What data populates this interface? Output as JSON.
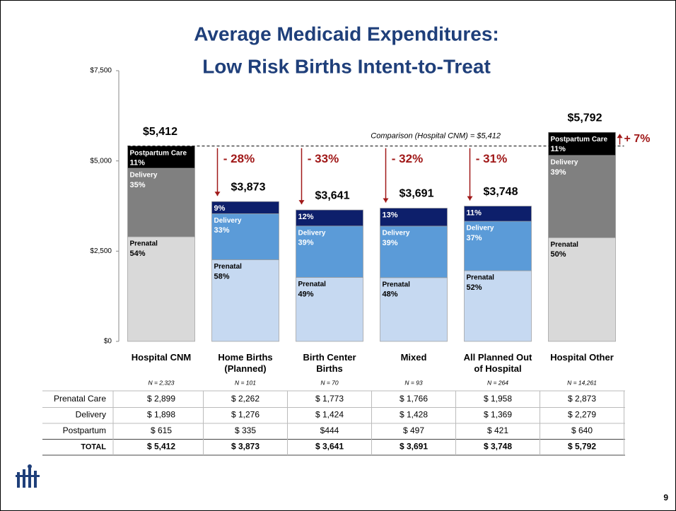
{
  "chart_data": {
    "type": "stacked-bar",
    "title_lines": [
      "Average Medicaid Expenditures:",
      "Low Risk Births Intent-to-Treat"
    ],
    "categories": [
      "Hospital CNM",
      "Home Births (Planned)",
      "Birth Center Births",
      "Mixed",
      "All Planned Out of Hospital",
      "Hospital Other"
    ],
    "sample_sizes": [
      "N = 2,323",
      "N = 101",
      "N = 70",
      "N = 93",
      "N = 264",
      "N = 14,261"
    ],
    "bar_palette": [
      "gray",
      "blue",
      "blue",
      "blue",
      "blue",
      "gray"
    ],
    "series": [
      {
        "name": "Prenatal",
        "colors": {
          "gray": "#d9d9d9",
          "blue": "#c6d9f1"
        },
        "text_colors": {
          "gray": "#000000",
          "blue": "#000000"
        },
        "values": [
          2899,
          2262,
          1773,
          1766,
          1958,
          2873
        ],
        "share_labels": [
          "54%",
          "58%",
          "49%",
          "48%",
          "52%",
          "50%"
        ],
        "name_shown": [
          true,
          true,
          true,
          true,
          true,
          true
        ]
      },
      {
        "name": "Delivery",
        "colors": {
          "gray": "#808080",
          "blue": "#5b9bd8"
        },
        "text_colors": {
          "gray": "#ffffff",
          "blue": "#ffffff"
        },
        "values": [
          1898,
          1276,
          1424,
          1428,
          1369,
          2279
        ],
        "share_labels": [
          "35%",
          "33%",
          "39%",
          "39%",
          "37%",
          "39%"
        ],
        "name_shown": [
          true,
          true,
          true,
          true,
          true,
          true
        ]
      },
      {
        "name": "Postpartum Care",
        "colors": {
          "gray": "#000000",
          "blue": "#0d1f6b"
        },
        "text_colors": {
          "gray": "#ffffff",
          "blue": "#ffffff"
        },
        "values": [
          615,
          335,
          444,
          497,
          421,
          640
        ],
        "share_labels": [
          "11%",
          "9%",
          "12%",
          "13%",
          "11%",
          "11%"
        ],
        "name_shown": [
          true,
          false,
          false,
          false,
          false,
          true
        ]
      }
    ],
    "totals": [
      5412,
      3873,
      3641,
      3691,
      3748,
      5792
    ],
    "total_labels": [
      "$5,412",
      "$3,873",
      "$3,641",
      "$3,691",
      "$3,748",
      "$5,792"
    ],
    "change_labels": [
      null,
      "- 28%",
      "- 33%",
      "- 32%",
      "- 31%",
      "+ 7%"
    ],
    "comparison_label": "Comparison (Hospital CNM) = $5,412",
    "ylim": [
      0,
      7500
    ],
    "yticks": [
      {
        "value": 0,
        "label": "$0"
      },
      {
        "value": 2500,
        "label": "$2,500"
      },
      {
        "value": 5000,
        "label": "$5,000"
      },
      {
        "value": 7500,
        "label": "$7,500"
      }
    ]
  },
  "table": {
    "rows": [
      {
        "label": "Prenatal Care",
        "cells": [
          "$ 2,899",
          "$ 2,262",
          "$ 1,773",
          "$ 1,766",
          "$ 1,958",
          "$ 2,873"
        ]
      },
      {
        "label": "Delivery",
        "cells": [
          "$ 1,898",
          "$ 1,276",
          "$ 1,424",
          "$ 1,428",
          "$ 1,369",
          "$ 2,279"
        ]
      },
      {
        "label": "Postpartum",
        "cells": [
          "$ 615",
          "$ 335",
          "$444",
          "$ 497",
          "$ 421",
          "$ 640"
        ]
      },
      {
        "label": "TOTAL",
        "cells": [
          "$ 5,412",
          "$ 3,873",
          "$ 3,641",
          "$ 3,691",
          "$ 3,748",
          "$ 5,792"
        ]
      }
    ]
  },
  "page_number": "9"
}
